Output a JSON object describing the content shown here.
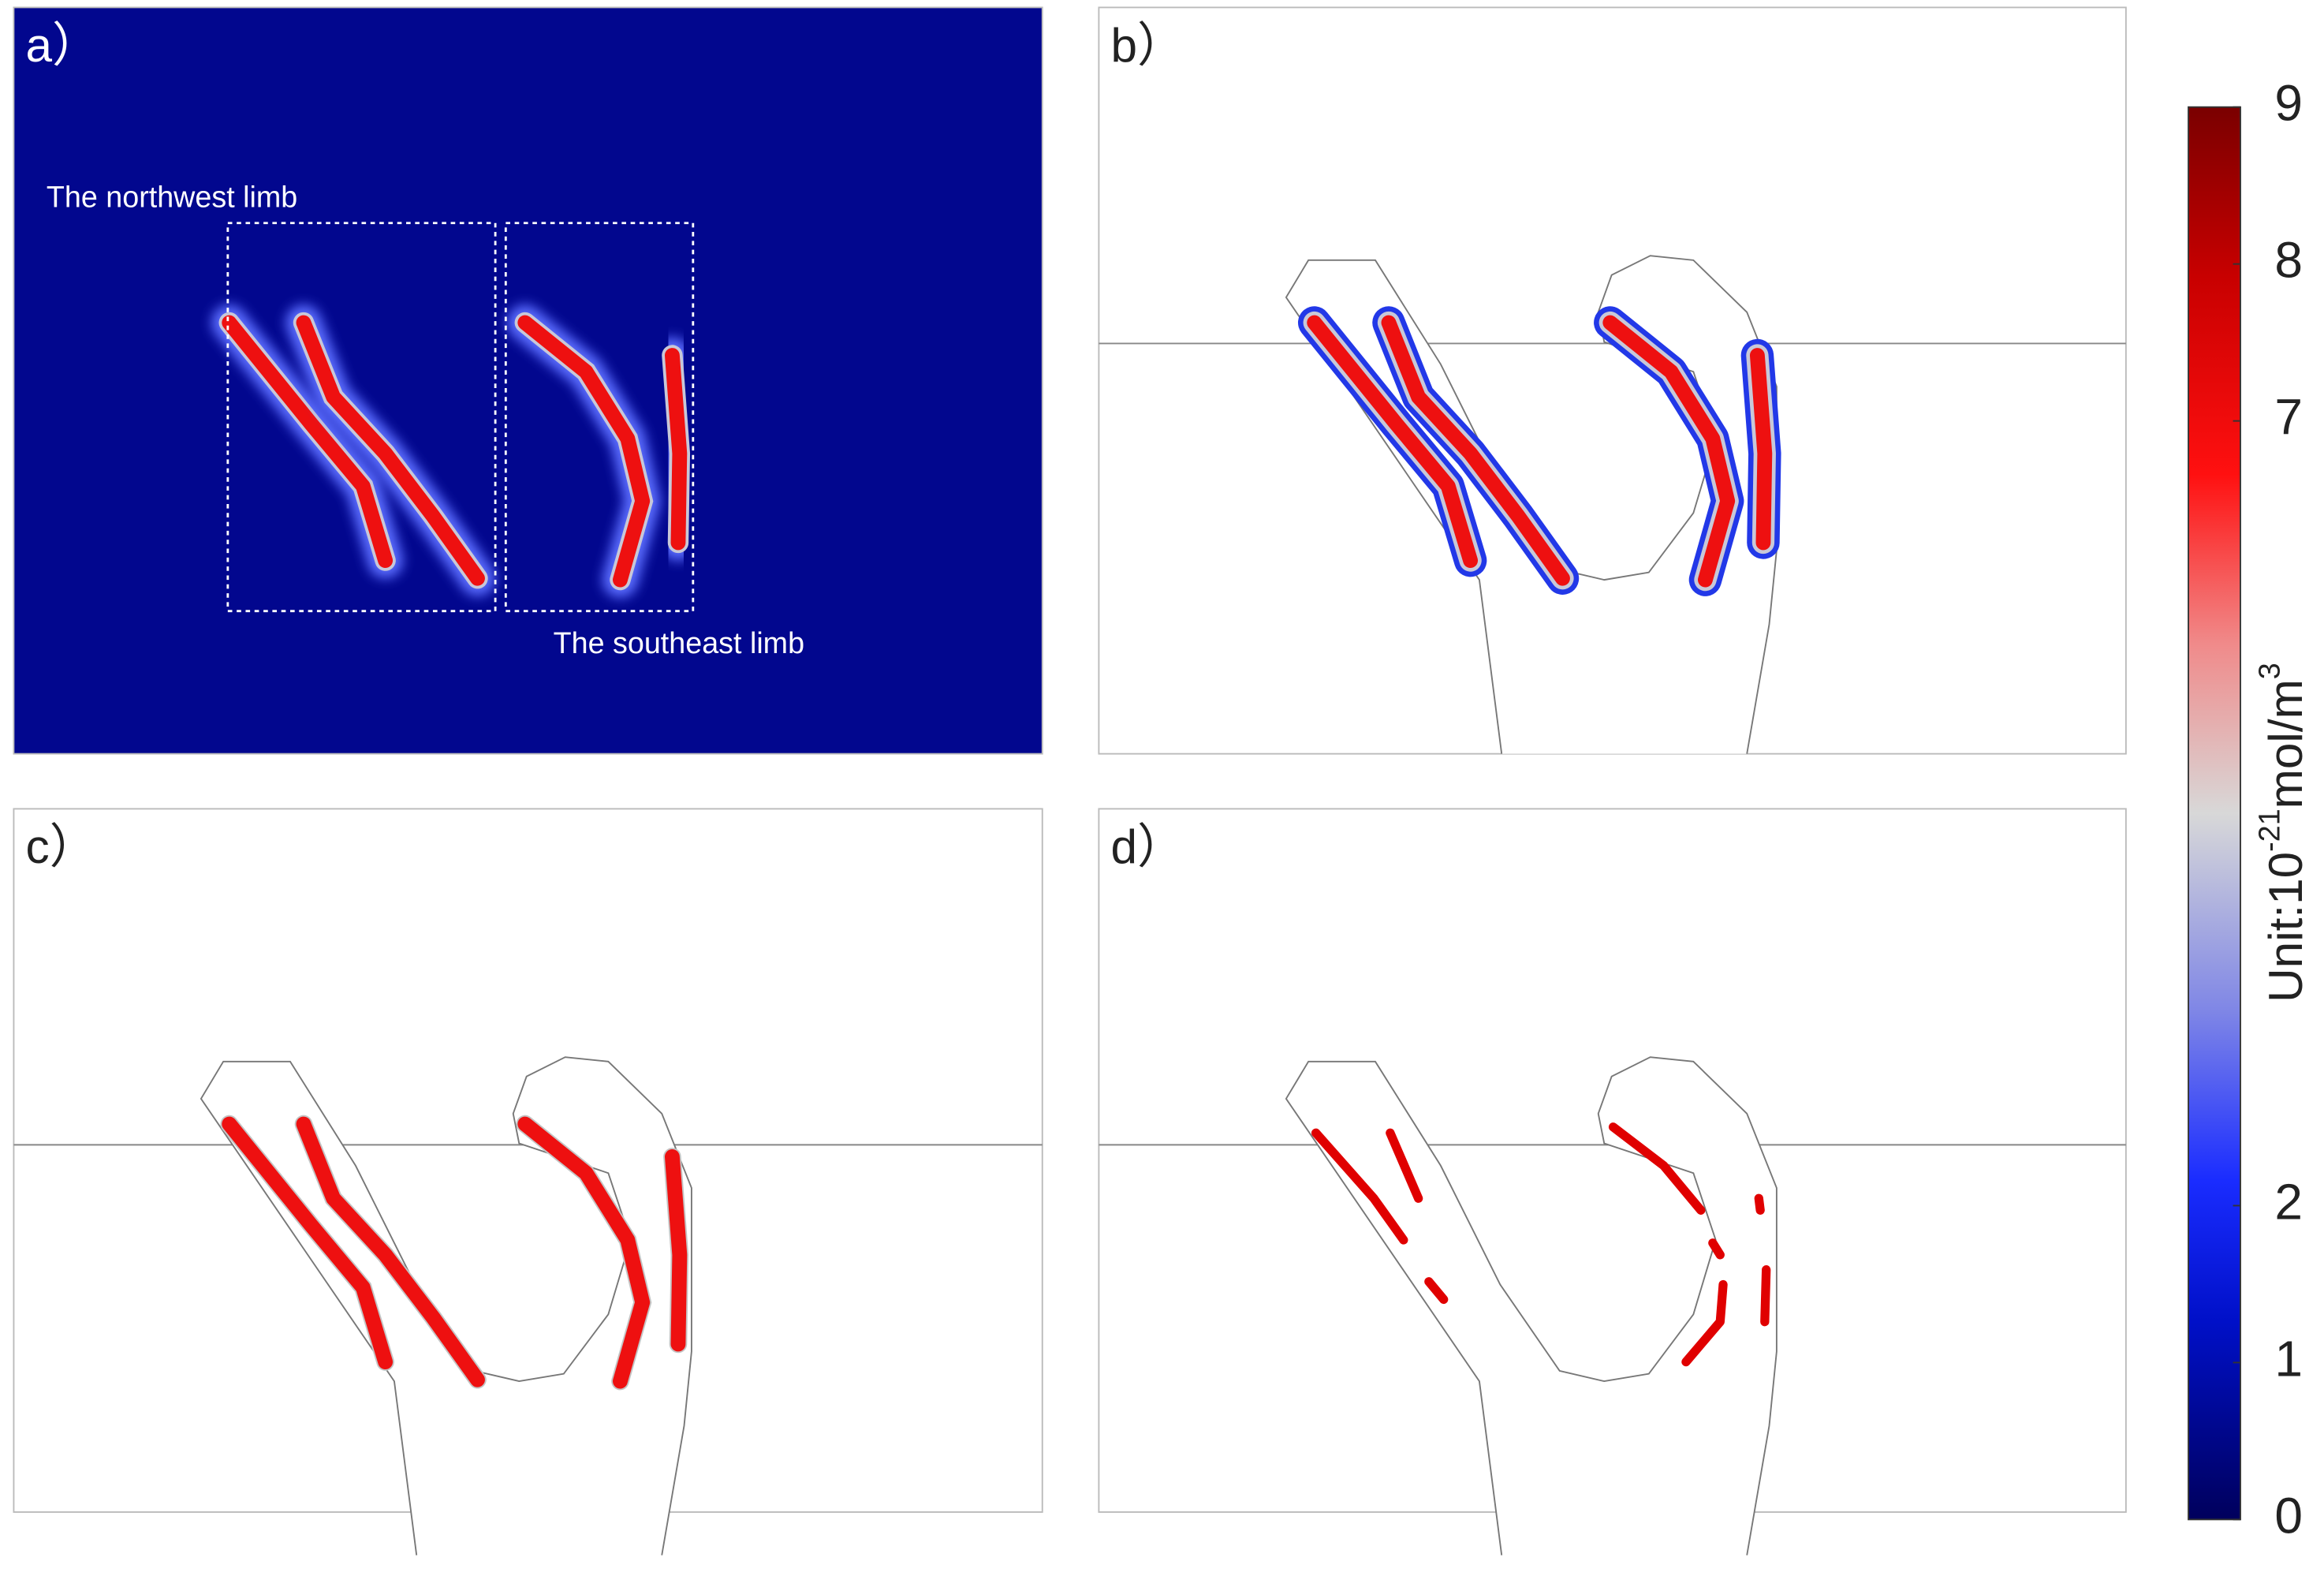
{
  "chart_data": {
    "type": "field",
    "panels": [
      {
        "label": "a）"
      },
      {
        "label": "b）"
      },
      {
        "label": "c）"
      },
      {
        "label": "d）"
      }
    ],
    "annotations": [
      "The northwest limb",
      "The southeast limb"
    ],
    "colorbar": {
      "label": [
        "Unit:10",
        "-21",
        "mol/m",
        "3"
      ],
      "lim": [
        0,
        9
      ],
      "ticks": [
        0,
        1,
        2,
        7,
        8,
        9
      ]
    }
  }
}
